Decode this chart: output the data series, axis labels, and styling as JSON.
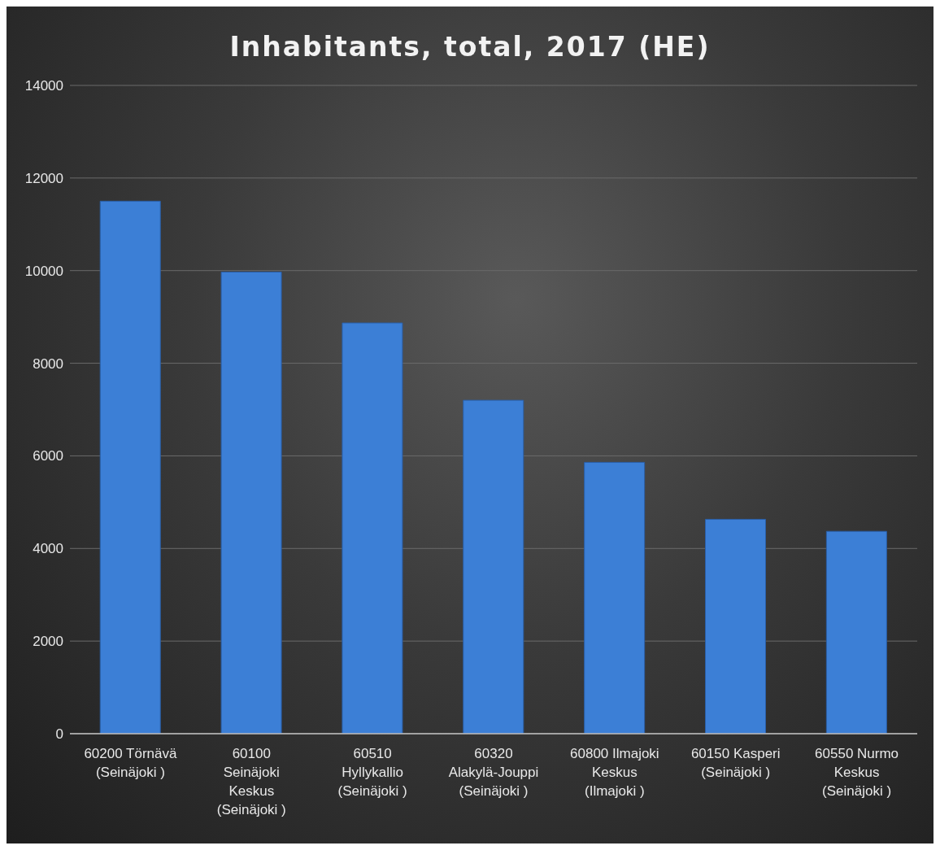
{
  "chart_data": {
    "type": "bar",
    "title": "Inhabitants, total, 2017 (HE)",
    "categories": [
      "60200 Törnävä (Seinäjoki )",
      "60100 Seinäjoki Keskus (Seinäjoki )",
      "60510 Hyllykallio (Seinäjoki )",
      "60320 Alakylä-Jouppi (Seinäjoki )",
      "60800 Ilmajoki Keskus (Ilmajoki )",
      "60150 Kasperi (Seinäjoki )",
      "60550 Nurmo Keskus (Seinäjoki )"
    ],
    "values": [
      11500,
      9970,
      8870,
      7200,
      5860,
      4630,
      4370
    ],
    "color": "#3c7fd6",
    "ylim": [
      0,
      14000
    ],
    "yticks": [
      0,
      2000,
      4000,
      6000,
      8000,
      10000,
      12000,
      14000
    ],
    "grid": "y",
    "legend": false
  }
}
